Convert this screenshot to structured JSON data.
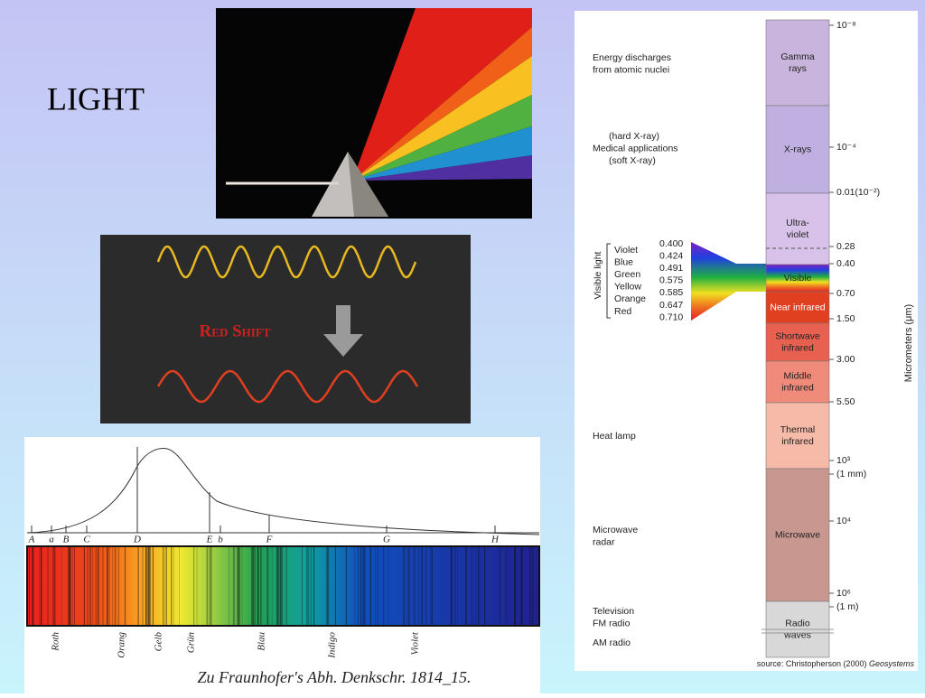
{
  "title": "LIGHT",
  "redshift": {
    "label": "Red Shift"
  },
  "em_spectrum": {
    "bands": [
      [
        "Gamma",
        "rays"
      ],
      [
        "X-rays"
      ],
      [
        "Ultra-",
        "violet"
      ],
      [
        "Visible"
      ],
      [
        "Near infrared"
      ],
      [
        "Shortwave",
        "infrared"
      ],
      [
        "Middle",
        "infrared"
      ],
      [
        "Thermal",
        "infrared"
      ],
      [
        "Microwave"
      ],
      [
        "Radio",
        "waves"
      ]
    ],
    "scale": [
      "10⁻⁸",
      "10⁻⁴",
      "0.01(10⁻²)",
      "0.28",
      "0.40",
      "0.70",
      "1.50",
      "3.00",
      "5.50",
      "10³",
      "(1 mm)",
      "10⁴",
      "10⁶",
      "(1 m)"
    ],
    "axis_label": "Micrometers (μm)",
    "uses": [
      [
        "Energy discharges",
        "from atomic nuclei"
      ],
      [
        "(hard X-ray)",
        "Medical applications",
        "(soft X-ray)"
      ],
      [
        "Heat lamp"
      ],
      [
        "Microwave",
        "radar"
      ],
      [
        "Television",
        "FM radio"
      ],
      [
        "AM radio"
      ]
    ],
    "visible": {
      "title": "Visible light",
      "colors": [
        "Violet",
        "Blue",
        "Green",
        "Yellow",
        "Orange",
        "Red"
      ],
      "wavelengths": [
        "0.400",
        "0.424",
        "0.491",
        "0.575",
        "0.585",
        "0.647",
        "0.710"
      ]
    },
    "source": "source: Christopherson (2000)",
    "source_work": "Geosystems"
  },
  "fraunhofer": {
    "lines": [
      "A",
      "a",
      "B",
      "C",
      "D",
      "E",
      "b",
      "F",
      "G",
      "H"
    ],
    "colors": [
      "Roth",
      "Orang",
      "Gelb",
      "Grün",
      "Blau",
      "Indigo",
      "Violet"
    ],
    "caption": "Zu Fraunhofer's Abh. Denkschr. 1814_15."
  }
}
